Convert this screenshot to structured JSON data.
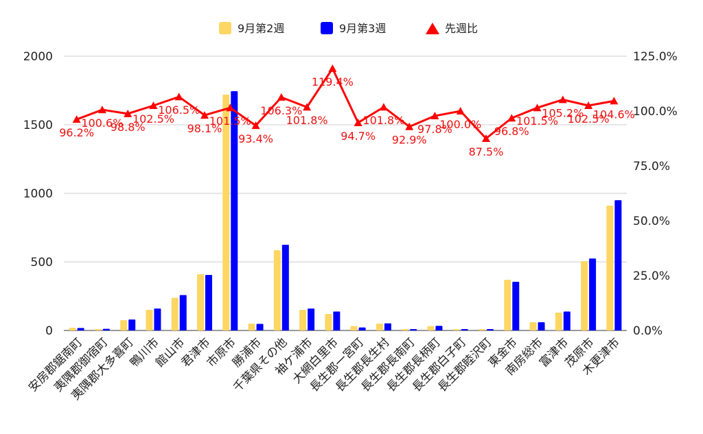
{
  "chart_data": {
    "type": "bar",
    "categories": [
      "安房郡鋸南町",
      "夷隅郡御宿町",
      "夷隅郡大多喜町",
      "鴨川市",
      "館山市",
      "君津市",
      "市原市",
      "勝浦市",
      "千葉県その他",
      "袖ケ浦市",
      "大網白里市",
      "長生郡一宮町",
      "長生郡長生村",
      "長生郡長南町",
      "長生郡長柄町",
      "長生郡白子町",
      "長生郡睦沢町",
      "東金市",
      "南房総市",
      "富津市",
      "茂原市",
      "木更津市"
    ],
    "series": [
      {
        "name": "9月第2週",
        "color": "#fdd663",
        "axis": "left",
        "values": [
          20,
          10,
          75,
          150,
          238,
          410,
          1720,
          50,
          585,
          150,
          120,
          32,
          50,
          10,
          32,
          10,
          10,
          370,
          60,
          130,
          505,
          910
        ]
      },
      {
        "name": "9月第3週",
        "color": "#0000ff",
        "axis": "left",
        "values": [
          18,
          12,
          80,
          160,
          258,
          405,
          1745,
          48,
          625,
          160,
          138,
          22,
          52,
          10,
          34,
          10,
          10,
          355,
          60,
          138,
          525,
          950
        ]
      },
      {
        "name": "先週比",
        "color": "#ff0000",
        "axis": "right",
        "type": "line",
        "values": [
          96.2,
          100.6,
          98.8,
          102.5,
          106.5,
          98.1,
          101.5,
          93.4,
          106.3,
          101.8,
          119.4,
          94.7,
          101.8,
          92.9,
          97.8,
          100.0,
          87.5,
          96.8,
          101.5,
          105.2,
          102.5,
          104.6
        ],
        "labels": [
          "96.2%",
          "100.6%",
          "98.8%",
          "102.5%",
          "106.5%",
          "98.1%",
          "101.5%",
          "93.4%",
          "106.3%",
          "101.8%",
          "119.4%",
          "94.7%",
          "101.8%",
          "92.9%",
          "97.8%",
          "100.0%",
          "87.5%",
          "96.8%",
          "101.5%",
          "105.2%",
          "102.5%",
          "104.6%"
        ]
      }
    ],
    "y_left": {
      "ticks": [
        "0",
        "500",
        "1000",
        "1500",
        "2000"
      ],
      "range": [
        0,
        2000
      ]
    },
    "y_right": {
      "ticks": [
        "0.0%",
        "25.0%",
        "50.0%",
        "75.0%",
        "100.0%",
        "125.0%"
      ],
      "range": [
        0,
        125
      ]
    },
    "grid": true,
    "legend_position": "top-center",
    "title": "",
    "xlabel": "",
    "ylabel": ""
  }
}
